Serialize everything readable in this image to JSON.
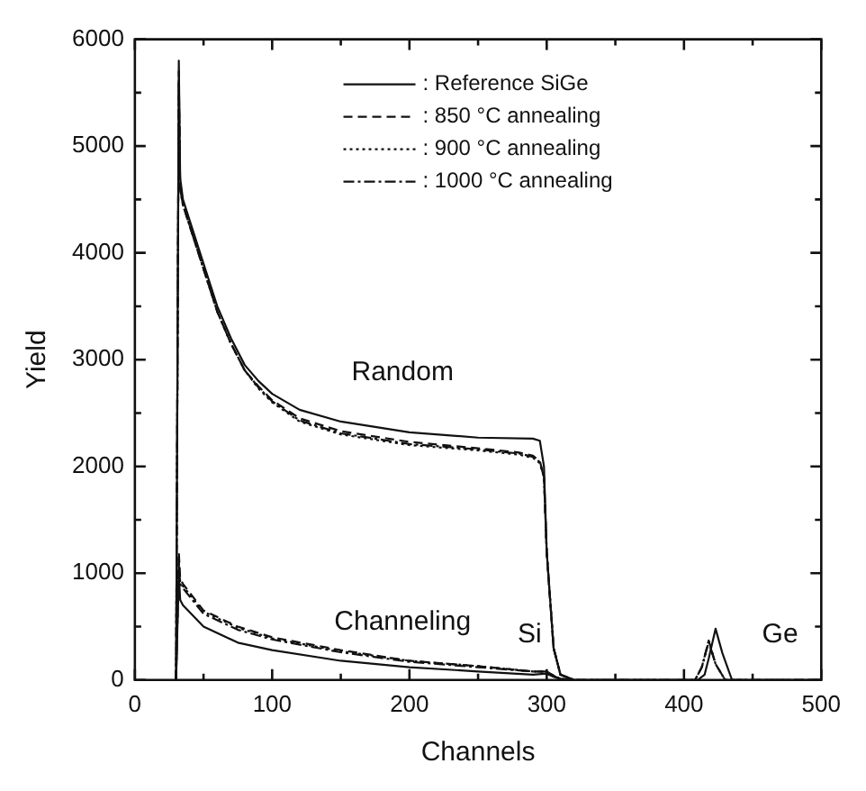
{
  "chart_data": {
    "type": "line",
    "xlabel": "Channels",
    "ylabel": "Yield",
    "xlim": [
      0,
      500
    ],
    "ylim": [
      0,
      6000
    ],
    "xticks": [
      0,
      {
        "value": 50,
        "label": null
      },
      100,
      {
        "value": 150,
        "label": null
      },
      200,
      {
        "value": 250,
        "label": null
      },
      300,
      {
        "value": 350,
        "label": null
      },
      400,
      {
        "value": 450,
        "label": null
      },
      500
    ],
    "yticks": [
      0,
      {
        "value": 500,
        "label": null
      },
      1000,
      {
        "value": 1500,
        "label": null
      },
      2000,
      {
        "value": 2500,
        "label": null
      },
      3000,
      {
        "value": 3500,
        "label": null
      },
      4000,
      {
        "value": 4500,
        "label": null
      },
      5000,
      {
        "value": 5500,
        "label": null
      },
      6000
    ],
    "grid": false,
    "legend": "top",
    "marker": "none",
    "series": [
      {
        "name": ": Reference SiGe",
        "color": "#111111",
        "line_style": "solid",
        "x": [
          30,
          32,
          33,
          35,
          40,
          50,
          60,
          70,
          80,
          90,
          100,
          120,
          150,
          200,
          250,
          290,
          295,
          298,
          300,
          305,
          310,
          320,
          400,
          410,
          415,
          418,
          423,
          428,
          435,
          500
        ],
        "values": [
          0,
          5800,
          4700,
          4500,
          4300,
          3900,
          3500,
          3200,
          2950,
          2800,
          2680,
          2530,
          2420,
          2320,
          2270,
          2260,
          2240,
          2000,
          1200,
          300,
          50,
          0,
          0,
          0,
          50,
          200,
          480,
          250,
          0,
          0
        ]
      },
      {
        "name": ": 850 °C annealing",
        "color": "#111111",
        "line_style": "dashed",
        "x": [
          30,
          32,
          33,
          35,
          40,
          50,
          60,
          70,
          80,
          90,
          100,
          120,
          150,
          200,
          250,
          280,
          290,
          295,
          298,
          300,
          305,
          310,
          320,
          400,
          408,
          413,
          418,
          423,
          430,
          500
        ],
        "values": [
          0,
          5700,
          4600,
          4450,
          4250,
          3850,
          3450,
          3150,
          2900,
          2750,
          2620,
          2450,
          2330,
          2230,
          2170,
          2130,
          2100,
          2050,
          1900,
          1200,
          300,
          50,
          0,
          0,
          0,
          120,
          370,
          150,
          0,
          0
        ]
      },
      {
        "name": ": 900 °C annealing",
        "color": "#111111",
        "line_style": "dotted",
        "x": [
          30,
          32,
          33,
          35,
          40,
          50,
          60,
          70,
          80,
          90,
          100,
          120,
          150,
          200,
          250,
          280,
          290,
          295,
          298,
          300,
          305,
          310,
          320,
          400,
          408,
          413,
          418,
          423,
          430,
          500
        ],
        "values": [
          0,
          5600,
          4600,
          4450,
          4250,
          3850,
          3450,
          3150,
          2900,
          2730,
          2600,
          2420,
          2300,
          2200,
          2150,
          2110,
          2080,
          2030,
          1900,
          1200,
          300,
          50,
          0,
          0,
          0,
          120,
          360,
          150,
          0,
          0
        ]
      },
      {
        "name": ": 1000 °C annealing",
        "color": "#111111",
        "line_style": "dashdot",
        "x": [
          30,
          32,
          33,
          35,
          40,
          50,
          60,
          70,
          80,
          90,
          100,
          120,
          150,
          200,
          250,
          280,
          290,
          295,
          298,
          300,
          305,
          310,
          320,
          400,
          408,
          413,
          418,
          423,
          430,
          500
        ],
        "values": [
          0,
          5600,
          4600,
          4450,
          4250,
          3850,
          3450,
          3150,
          2900,
          2740,
          2610,
          2430,
          2310,
          2210,
          2160,
          2120,
          2090,
          2040,
          1900,
          1200,
          300,
          50,
          0,
          0,
          0,
          120,
          360,
          150,
          0,
          0
        ]
      },
      {
        "color": "#111111",
        "line_style": "solid",
        "x": [
          30,
          32,
          33,
          35,
          50,
          75,
          100,
          150,
          200,
          250,
          290,
          300,
          305,
          310,
          320
        ],
        "values": [
          0,
          1000,
          750,
          700,
          500,
          350,
          280,
          180,
          120,
          80,
          50,
          60,
          30,
          10,
          0
        ]
      },
      {
        "color": "#111111",
        "line_style": "dashed",
        "x": [
          30,
          32,
          33,
          35,
          50,
          75,
          100,
          150,
          200,
          250,
          290,
          300,
          305,
          310,
          320
        ],
        "values": [
          0,
          1200,
          950,
          900,
          650,
          500,
          400,
          280,
          180,
          130,
          80,
          80,
          40,
          10,
          0
        ]
      },
      {
        "color": "#111111",
        "line_style": "dotted",
        "x": [
          30,
          32,
          33,
          35,
          50,
          75,
          100,
          150,
          200,
          250,
          290,
          300,
          305,
          310,
          320
        ],
        "values": [
          0,
          1150,
          920,
          880,
          640,
          490,
          390,
          270,
          180,
          130,
          80,
          80,
          40,
          10,
          0
        ]
      },
      {
        "color": "#111111",
        "line_style": "dashdot",
        "x": [
          30,
          32,
          33,
          35,
          50,
          75,
          100,
          150,
          200,
          250,
          290,
          300,
          305,
          310,
          320
        ],
        "values": [
          0,
          1100,
          900,
          860,
          620,
          470,
          380,
          260,
          170,
          120,
          80,
          80,
          40,
          10,
          0
        ]
      }
    ],
    "annotations": [
      "Random",
      "Channeling",
      "Si",
      "Ge"
    ]
  }
}
